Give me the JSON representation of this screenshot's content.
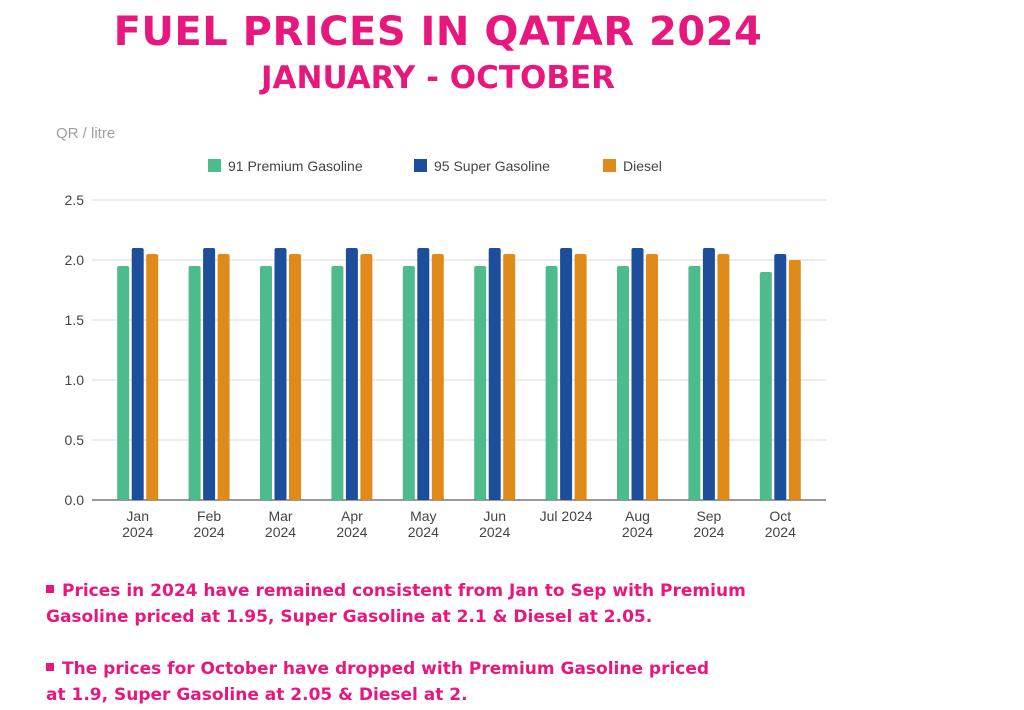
{
  "header": {
    "title": "FUEL PRICES IN QATAR 2024",
    "subtitle": "JANUARY - OCTOBER"
  },
  "chart_data": {
    "type": "bar",
    "ylabel": "QR / litre",
    "ylim": [
      0,
      2.5
    ],
    "yticks": [
      "0.0",
      "0.5",
      "1.0",
      "1.5",
      "2.0",
      "2.5"
    ],
    "ytick_values": [
      0,
      0.5,
      1.0,
      1.5,
      2.0,
      2.5
    ],
    "grid": true,
    "legend_position": "top",
    "categories": [
      [
        "Jan",
        "2024"
      ],
      [
        "Feb",
        "2024"
      ],
      [
        "Mar",
        "2024"
      ],
      [
        "Apr",
        "2024"
      ],
      [
        "May",
        "2024"
      ],
      [
        "Jun",
        "2024"
      ],
      [
        "Jul 2024"
      ],
      [
        "Aug",
        "2024"
      ],
      [
        "Sep",
        "2024"
      ],
      [
        "Oct",
        "2024"
      ]
    ],
    "series": [
      {
        "name": "91 Premium Gasoline",
        "color": "#4dbb8c",
        "values": [
          1.95,
          1.95,
          1.95,
          1.95,
          1.95,
          1.95,
          1.95,
          1.95,
          1.95,
          1.9
        ]
      },
      {
        "name": "95 Super Gasoline",
        "color": "#1c4e9c",
        "values": [
          2.1,
          2.1,
          2.1,
          2.1,
          2.1,
          2.1,
          2.1,
          2.1,
          2.1,
          2.05
        ]
      },
      {
        "name": "Diesel",
        "color": "#e08a1a",
        "values": [
          2.05,
          2.05,
          2.05,
          2.05,
          2.05,
          2.05,
          2.05,
          2.05,
          2.05,
          2.0
        ]
      }
    ]
  },
  "notes": [
    {
      "line1": "Prices in 2024 have remained consistent from Jan to Sep with Premium",
      "line2": "Gasoline priced at 1.95, Super Gasoline at 2.1 & Diesel at 2.05."
    },
    {
      "line1": "The prices for October have dropped with Premium Gasoline priced",
      "line2": "at 1.9, Super Gasoline at 2.05 & Diesel at 2."
    }
  ]
}
